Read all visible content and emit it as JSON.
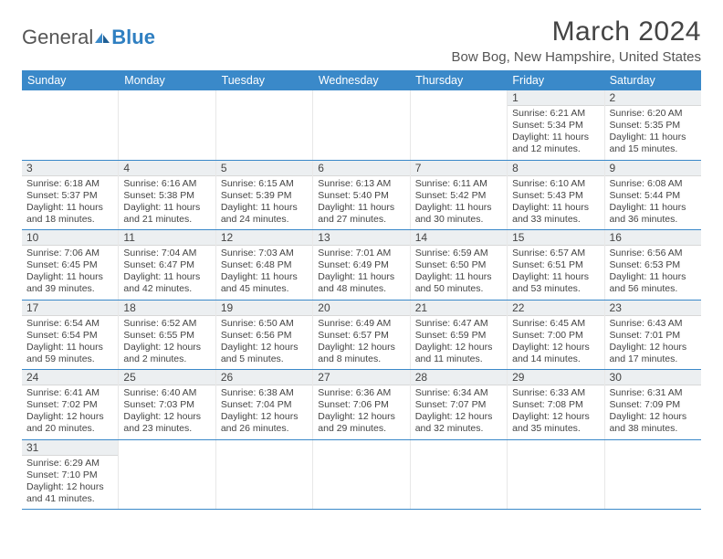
{
  "logo": {
    "text1": "General",
    "text2": "Blue"
  },
  "title": "March 2024",
  "location": "Bow Bog, New Hampshire, United States",
  "colors": {
    "header_bg": "#3a89c9",
    "header_text": "#ffffff",
    "daynum_bg": "#eceff1",
    "row_border": "#3a89c9",
    "text": "#444444",
    "background": "#ffffff"
  },
  "weekdays": [
    "Sunday",
    "Monday",
    "Tuesday",
    "Wednesday",
    "Thursday",
    "Friday",
    "Saturday"
  ],
  "weeks": [
    [
      null,
      null,
      null,
      null,
      null,
      {
        "num": "1",
        "sunrise": "6:21 AM",
        "sunset": "5:34 PM",
        "daylight": "11 hours and 12 minutes."
      },
      {
        "num": "2",
        "sunrise": "6:20 AM",
        "sunset": "5:35 PM",
        "daylight": "11 hours and 15 minutes."
      }
    ],
    [
      {
        "num": "3",
        "sunrise": "6:18 AM",
        "sunset": "5:37 PM",
        "daylight": "11 hours and 18 minutes."
      },
      {
        "num": "4",
        "sunrise": "6:16 AM",
        "sunset": "5:38 PM",
        "daylight": "11 hours and 21 minutes."
      },
      {
        "num": "5",
        "sunrise": "6:15 AM",
        "sunset": "5:39 PM",
        "daylight": "11 hours and 24 minutes."
      },
      {
        "num": "6",
        "sunrise": "6:13 AM",
        "sunset": "5:40 PM",
        "daylight": "11 hours and 27 minutes."
      },
      {
        "num": "7",
        "sunrise": "6:11 AM",
        "sunset": "5:42 PM",
        "daylight": "11 hours and 30 minutes."
      },
      {
        "num": "8",
        "sunrise": "6:10 AM",
        "sunset": "5:43 PM",
        "daylight": "11 hours and 33 minutes."
      },
      {
        "num": "9",
        "sunrise": "6:08 AM",
        "sunset": "5:44 PM",
        "daylight": "11 hours and 36 minutes."
      }
    ],
    [
      {
        "num": "10",
        "sunrise": "7:06 AM",
        "sunset": "6:45 PM",
        "daylight": "11 hours and 39 minutes."
      },
      {
        "num": "11",
        "sunrise": "7:04 AM",
        "sunset": "6:47 PM",
        "daylight": "11 hours and 42 minutes."
      },
      {
        "num": "12",
        "sunrise": "7:03 AM",
        "sunset": "6:48 PM",
        "daylight": "11 hours and 45 minutes."
      },
      {
        "num": "13",
        "sunrise": "7:01 AM",
        "sunset": "6:49 PM",
        "daylight": "11 hours and 48 minutes."
      },
      {
        "num": "14",
        "sunrise": "6:59 AM",
        "sunset": "6:50 PM",
        "daylight": "11 hours and 50 minutes."
      },
      {
        "num": "15",
        "sunrise": "6:57 AM",
        "sunset": "6:51 PM",
        "daylight": "11 hours and 53 minutes."
      },
      {
        "num": "16",
        "sunrise": "6:56 AM",
        "sunset": "6:53 PM",
        "daylight": "11 hours and 56 minutes."
      }
    ],
    [
      {
        "num": "17",
        "sunrise": "6:54 AM",
        "sunset": "6:54 PM",
        "daylight": "11 hours and 59 minutes."
      },
      {
        "num": "18",
        "sunrise": "6:52 AM",
        "sunset": "6:55 PM",
        "daylight": "12 hours and 2 minutes."
      },
      {
        "num": "19",
        "sunrise": "6:50 AM",
        "sunset": "6:56 PM",
        "daylight": "12 hours and 5 minutes."
      },
      {
        "num": "20",
        "sunrise": "6:49 AM",
        "sunset": "6:57 PM",
        "daylight": "12 hours and 8 minutes."
      },
      {
        "num": "21",
        "sunrise": "6:47 AM",
        "sunset": "6:59 PM",
        "daylight": "12 hours and 11 minutes."
      },
      {
        "num": "22",
        "sunrise": "6:45 AM",
        "sunset": "7:00 PM",
        "daylight": "12 hours and 14 minutes."
      },
      {
        "num": "23",
        "sunrise": "6:43 AM",
        "sunset": "7:01 PM",
        "daylight": "12 hours and 17 minutes."
      }
    ],
    [
      {
        "num": "24",
        "sunrise": "6:41 AM",
        "sunset": "7:02 PM",
        "daylight": "12 hours and 20 minutes."
      },
      {
        "num": "25",
        "sunrise": "6:40 AM",
        "sunset": "7:03 PM",
        "daylight": "12 hours and 23 minutes."
      },
      {
        "num": "26",
        "sunrise": "6:38 AM",
        "sunset": "7:04 PM",
        "daylight": "12 hours and 26 minutes."
      },
      {
        "num": "27",
        "sunrise": "6:36 AM",
        "sunset": "7:06 PM",
        "daylight": "12 hours and 29 minutes."
      },
      {
        "num": "28",
        "sunrise": "6:34 AM",
        "sunset": "7:07 PM",
        "daylight": "12 hours and 32 minutes."
      },
      {
        "num": "29",
        "sunrise": "6:33 AM",
        "sunset": "7:08 PM",
        "daylight": "12 hours and 35 minutes."
      },
      {
        "num": "30",
        "sunrise": "6:31 AM",
        "sunset": "7:09 PM",
        "daylight": "12 hours and 38 minutes."
      }
    ],
    [
      {
        "num": "31",
        "sunrise": "6:29 AM",
        "sunset": "7:10 PM",
        "daylight": "12 hours and 41 minutes."
      },
      null,
      null,
      null,
      null,
      null,
      null
    ]
  ],
  "labels": {
    "sunrise_prefix": "Sunrise: ",
    "sunset_prefix": "Sunset: ",
    "daylight_prefix": "Daylight: "
  }
}
